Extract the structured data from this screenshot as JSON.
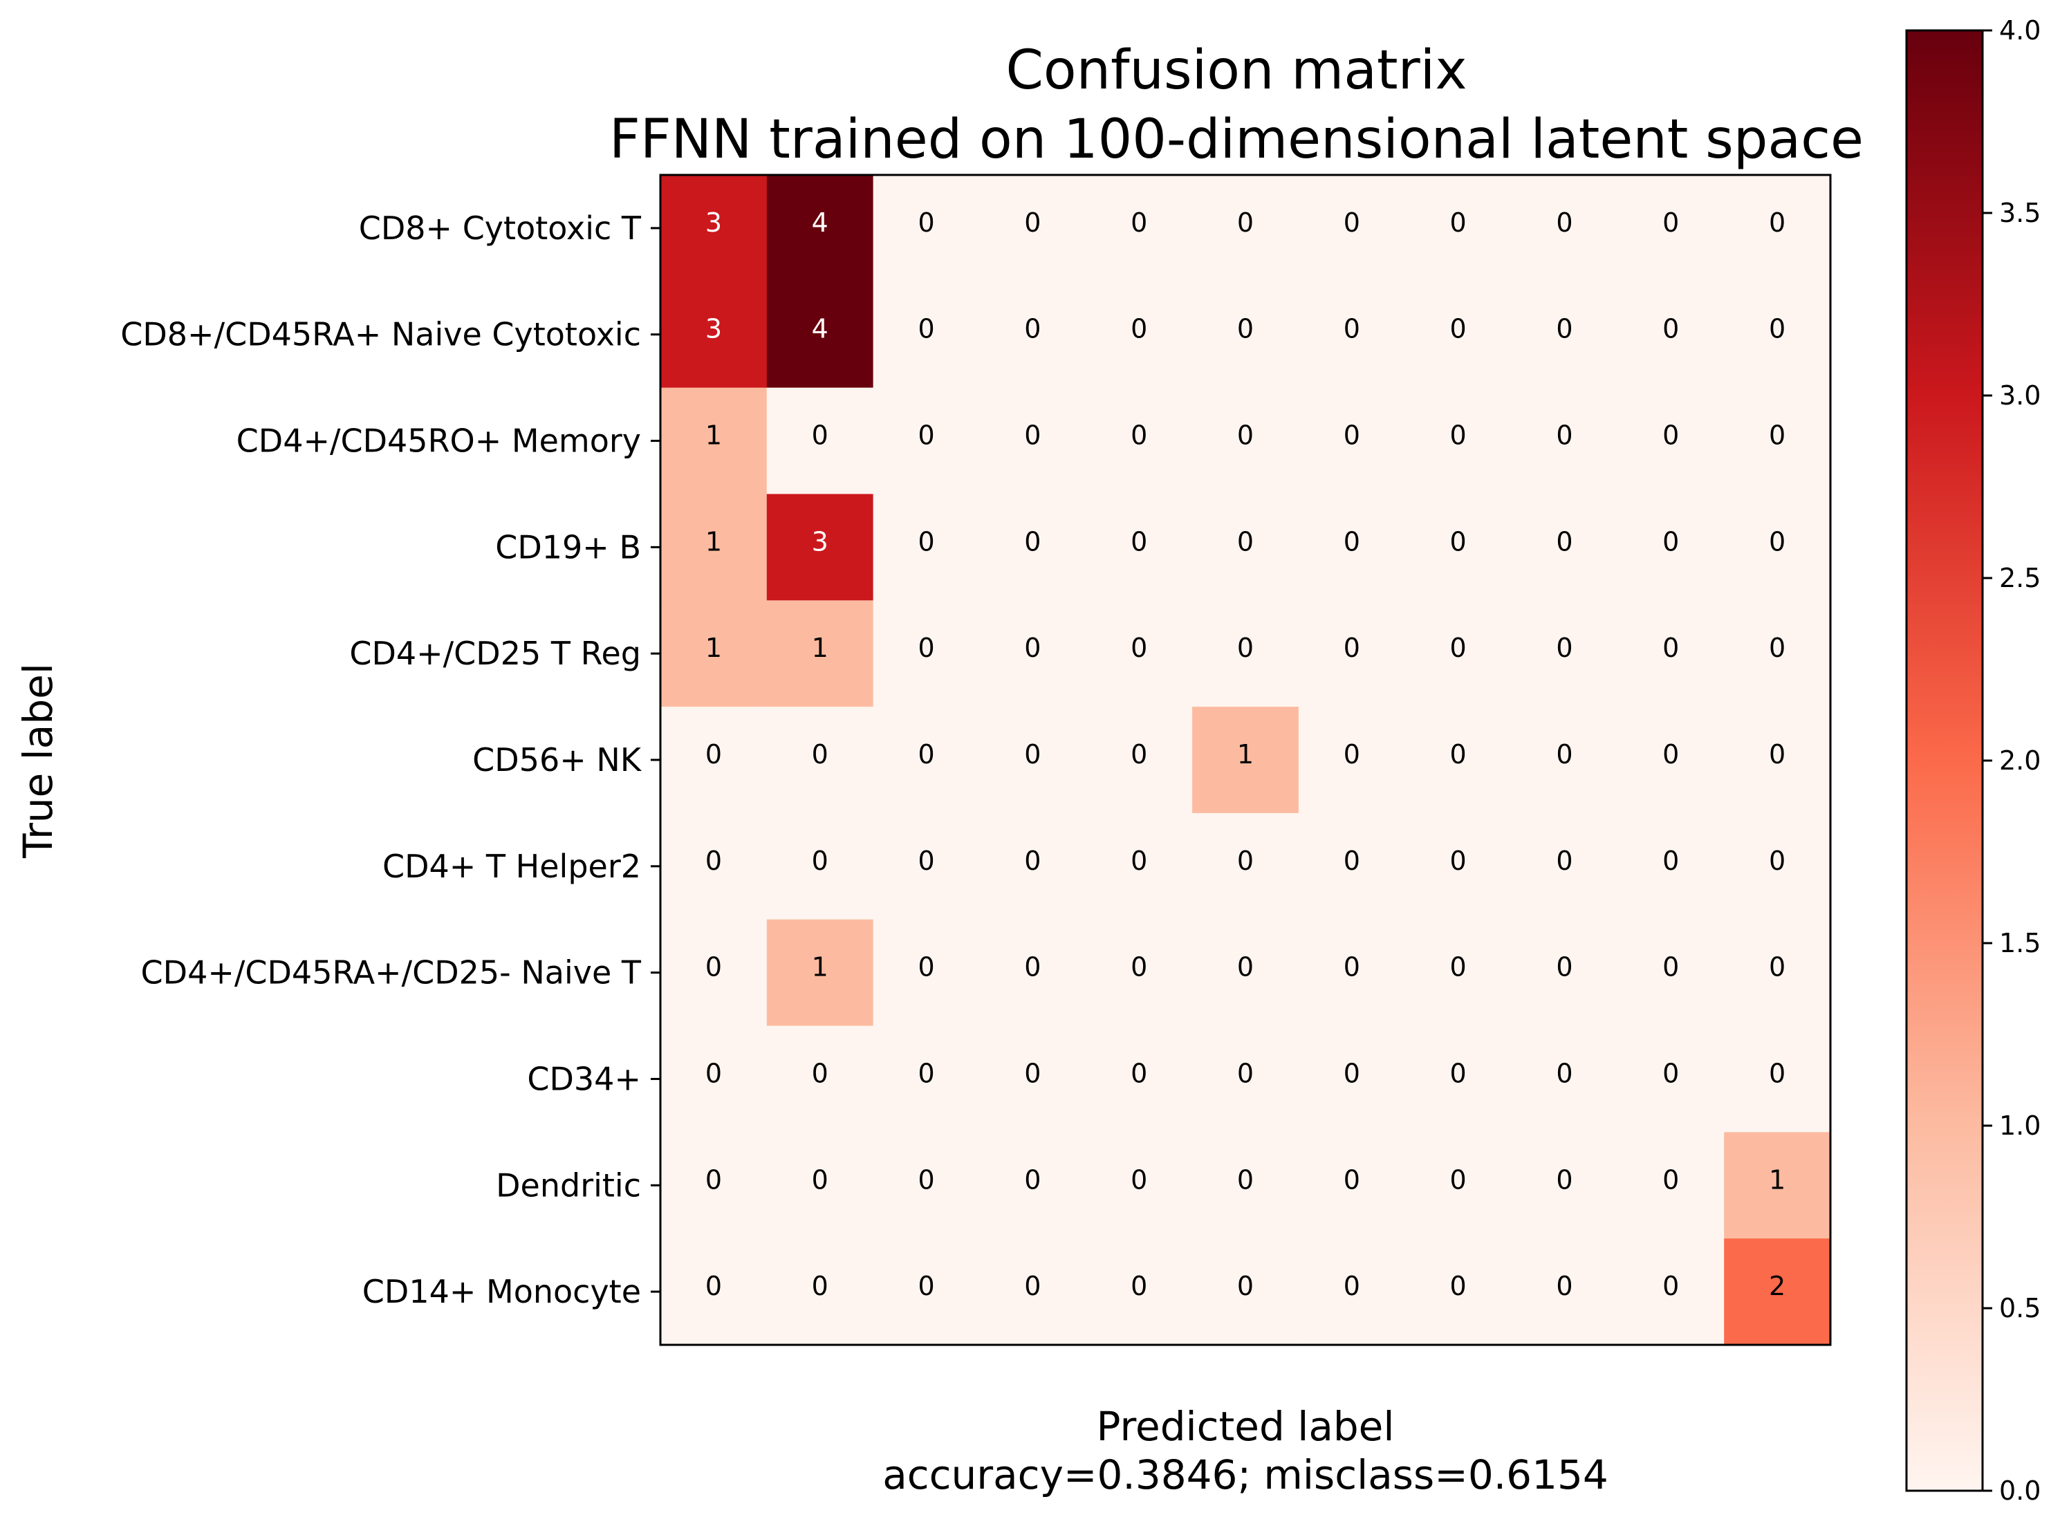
{
  "chart_data": {
    "type": "heatmap",
    "title_lines": [
      "Confusion matrix",
      "FFNN trained on 100-dimensional latent space"
    ],
    "ylabel": "True label",
    "xlabel_lines": [
      "Predicted label",
      "accuracy=0.3846; misclass=0.6154"
    ],
    "row_labels": [
      "CD8+ Cytotoxic T",
      "CD8+/CD45RA+ Naive Cytotoxic",
      "CD4+/CD45RO+ Memory",
      "CD19+ B",
      "CD4+/CD25 T Reg",
      "CD56+ NK",
      "CD4+ T Helper2",
      "CD4+/CD45RA+/CD25- Naive T",
      "CD34+",
      "Dendritic",
      "CD14+ Monocyte"
    ],
    "x_tick_labels_shown": false,
    "matrix": [
      [
        3,
        4,
        0,
        0,
        0,
        0,
        0,
        0,
        0,
        0,
        0
      ],
      [
        3,
        4,
        0,
        0,
        0,
        0,
        0,
        0,
        0,
        0,
        0
      ],
      [
        1,
        0,
        0,
        0,
        0,
        0,
        0,
        0,
        0,
        0,
        0
      ],
      [
        1,
        3,
        0,
        0,
        0,
        0,
        0,
        0,
        0,
        0,
        0
      ],
      [
        1,
        1,
        0,
        0,
        0,
        0,
        0,
        0,
        0,
        0,
        0
      ],
      [
        0,
        0,
        0,
        0,
        0,
        1,
        0,
        0,
        0,
        0,
        0
      ],
      [
        0,
        0,
        0,
        0,
        0,
        0,
        0,
        0,
        0,
        0,
        0
      ],
      [
        0,
        1,
        0,
        0,
        0,
        0,
        0,
        0,
        0,
        0,
        0
      ],
      [
        0,
        0,
        0,
        0,
        0,
        0,
        0,
        0,
        0,
        0,
        0
      ],
      [
        0,
        0,
        0,
        0,
        0,
        0,
        0,
        0,
        0,
        0,
        1
      ],
      [
        0,
        0,
        0,
        0,
        0,
        0,
        0,
        0,
        0,
        0,
        2
      ]
    ],
    "colormap": "Reds",
    "colormap_stops": [
      "#fff5f0",
      "#fcbba1",
      "#fb6a4a",
      "#cb181d",
      "#67000d"
    ],
    "value_range": [
      0,
      4
    ],
    "colorbar_ticks": [
      "0.0",
      "0.5",
      "1.0",
      "1.5",
      "2.0",
      "2.5",
      "3.0",
      "3.5",
      "4.0"
    ],
    "cell_text_light_color": "#ffffff",
    "cell_text_dark_color": "#000000",
    "grid": false,
    "colorbar_position": "right"
  }
}
